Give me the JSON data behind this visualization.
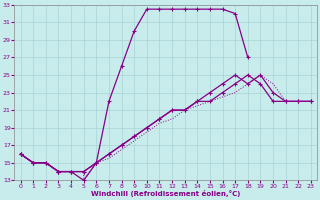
{
  "xlabel": "Windchill (Refroidissement éolien,°C)",
  "xlim": [
    -0.5,
    23.5
  ],
  "ylim": [
    13,
    33
  ],
  "xticks": [
    0,
    1,
    2,
    3,
    4,
    5,
    6,
    7,
    8,
    9,
    10,
    11,
    12,
    13,
    14,
    15,
    16,
    17,
    18,
    19,
    20,
    21,
    22,
    23
  ],
  "yticks": [
    13,
    15,
    17,
    19,
    21,
    23,
    25,
    27,
    29,
    31,
    33
  ],
  "bg_color": "#c8ecec",
  "grid_color": "#a8d4d4",
  "line_color": "#880088",
  "c1_x": [
    0,
    1,
    2,
    3,
    4,
    5,
    6,
    7,
    8,
    9,
    10,
    11,
    12,
    13,
    14,
    15,
    16,
    17,
    18
  ],
  "c1_y": [
    16,
    15,
    15,
    14,
    14,
    13,
    15,
    22,
    26,
    30,
    32.5,
    32.5,
    32.5,
    32.5,
    32.5,
    32.5,
    32.5,
    32,
    27
  ],
  "c2_x": [
    0,
    1,
    2,
    3,
    4,
    5,
    6,
    7,
    8,
    9,
    10,
    11,
    12,
    13,
    14,
    15,
    16,
    17,
    18,
    19,
    20,
    21,
    22,
    23
  ],
  "c2_y": [
    16,
    15,
    15,
    14,
    14,
    14,
    15,
    16,
    17,
    18,
    19,
    20,
    21,
    21,
    22,
    23,
    24,
    25,
    24,
    25,
    23,
    22,
    22,
    22
  ],
  "c3_x": [
    0,
    1,
    2,
    3,
    4,
    5,
    6,
    7,
    8,
    9,
    10,
    11,
    12,
    13,
    14,
    15,
    16,
    17,
    18,
    19,
    20,
    21,
    22,
    23
  ],
  "c3_y": [
    16,
    15,
    15,
    14,
    14,
    14,
    15,
    16,
    17,
    18,
    19,
    20,
    21,
    21,
    22,
    22,
    23,
    24,
    25,
    24,
    22,
    22,
    22,
    22
  ],
  "c4_x": [
    0,
    1,
    2,
    3,
    4,
    5,
    5,
    6,
    7,
    8,
    9,
    10,
    11,
    12,
    13,
    14,
    15,
    16,
    17,
    18,
    19,
    20,
    21,
    22,
    23
  ],
  "c4_y": [
    16,
    15,
    15,
    14,
    14,
    14,
    13,
    15,
    15.5,
    16.5,
    17.5,
    18.5,
    19.5,
    20,
    21,
    21.5,
    22,
    22.5,
    23,
    24,
    25,
    24,
    22,
    22,
    22
  ]
}
